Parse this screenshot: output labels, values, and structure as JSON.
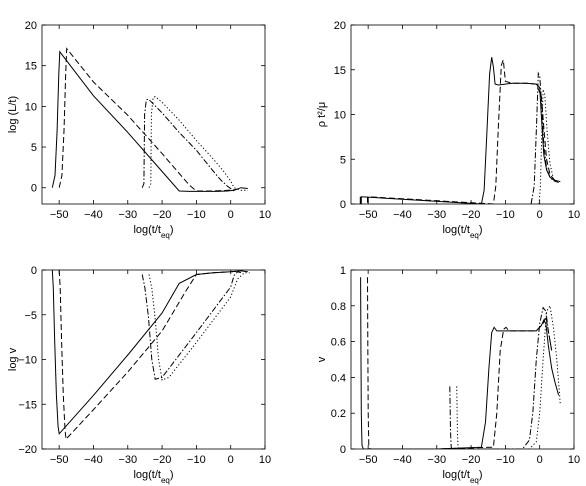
{
  "chart_data": [
    {
      "type": "line",
      "xlabel": "log(t/t_eq)",
      "ylabel": "log (L/t)",
      "xlim": [
        -55,
        10
      ],
      "ylim": [
        -2,
        20
      ],
      "xticks": [
        -50,
        -40,
        -30,
        -20,
        -10,
        0,
        10
      ],
      "yticks": [
        0,
        5,
        10,
        15,
        20
      ],
      "series": [
        {
          "style": "solid",
          "x": [
            -52,
            -51.2,
            -50.6,
            -50.1,
            -49.8,
            -40,
            -30,
            -20,
            -15,
            -12,
            -8,
            -4,
            -1,
            1,
            3,
            5
          ],
          "y": [
            0,
            1.5,
            7,
            14,
            16.7,
            11.3,
            6.8,
            2,
            -0.4,
            -0.45,
            -0.45,
            -0.45,
            -0.4,
            -0.3,
            0,
            -0.1
          ]
        },
        {
          "style": "dashed",
          "x": [
            -50,
            -49.2,
            -48.6,
            -48.1,
            -47.8,
            -40,
            -30,
            -20,
            -12,
            -10,
            -6,
            -2,
            1,
            3
          ],
          "y": [
            0,
            1.5,
            7,
            14,
            17.1,
            13,
            8.9,
            4.2,
            0.3,
            -0.4,
            -0.4,
            -0.35,
            -0.25,
            -0.1
          ]
        },
        {
          "style": "dashdot",
          "x": [
            -25.8,
            -25.3,
            -25.1,
            -24.6,
            -24,
            -20,
            -15,
            -10,
            -5,
            -3,
            -1,
            1
          ],
          "y": [
            0,
            0.5,
            9,
            10.8,
            10.9,
            9.2,
            6.8,
            4.6,
            2,
            1,
            0.2,
            -0.4
          ]
        },
        {
          "style": "dotted",
          "x": [
            -23.8,
            -23.3,
            -23.1,
            -22.6,
            -22,
            -20,
            -15,
            -10,
            -5,
            -2,
            0,
            1,
            3,
            5
          ],
          "y": [
            0,
            0.5,
            9,
            11.1,
            11.2,
            10.5,
            8.3,
            5.8,
            3.5,
            2,
            0.8,
            0,
            -0.3,
            -0.3
          ]
        }
      ]
    },
    {
      "type": "line",
      "xlabel": "log(t/t_eq)",
      "ylabel": "ρ t²/μ",
      "xlim": [
        -55,
        10
      ],
      "ylim": [
        0,
        20
      ],
      "xticks": [
        -50,
        -40,
        -30,
        -20,
        -10,
        0,
        10
      ],
      "yticks": [
        0,
        5,
        10,
        15,
        20
      ],
      "series": [
        {
          "style": "solid",
          "x": [
            -52.3,
            -52.3,
            -52,
            -52,
            -17,
            -16.2,
            -15.4,
            -14.6,
            -14,
            -13.5,
            -13,
            -12,
            -8,
            -4,
            -1,
            0,
            0.6,
            1.2,
            2,
            3,
            4,
            5,
            6
          ],
          "y": [
            0.8,
            0,
            0,
            0.8,
            0,
            1.5,
            8,
            14.5,
            16.4,
            15.3,
            13.4,
            13.3,
            13.5,
            13.5,
            13.4,
            13,
            9,
            5.5,
            3.8,
            3,
            2.7,
            2.6,
            2.5
          ]
        },
        {
          "style": "dashed",
          "x": [
            -50.2,
            -50.2,
            -50,
            -50,
            -13.5,
            -12.8,
            -12,
            -11.2,
            -10.6,
            -10,
            -8,
            -4,
            -1,
            0.5,
            1.3,
            2,
            3,
            4.5
          ],
          "y": [
            0.8,
            0,
            0,
            0.8,
            0,
            2,
            9,
            15.5,
            16.1,
            13.7,
            13.5,
            13.5,
            13.4,
            12,
            8,
            5,
            3.3,
            2.6
          ]
        },
        {
          "style": "dashdot",
          "x": [
            -2.5,
            -1.6,
            -0.9,
            -0.4,
            0,
            0.6,
            1.2,
            2,
            3,
            4,
            5.5
          ],
          "y": [
            0,
            2,
            9,
            14.6,
            14.3,
            11,
            6.5,
            4,
            3,
            2.6,
            2.4
          ]
        },
        {
          "style": "dotted",
          "x": [
            -0.2,
            0.2,
            0.6,
            1,
            1.5,
            2.2,
            3,
            4,
            5
          ],
          "y": [
            0,
            2,
            8,
            12.8,
            12.2,
            8,
            4.5,
            2.8,
            2.5
          ]
        }
      ]
    },
    {
      "type": "line",
      "xlabel": "log(t/t_eq)",
      "ylabel": "log v",
      "xlim": [
        -55,
        10
      ],
      "ylim": [
        -20,
        0
      ],
      "xticks": [
        -50,
        -40,
        -30,
        -20,
        -10,
        0,
        10
      ],
      "yticks": [
        -20,
        -15,
        -10,
        -5,
        0
      ],
      "series": [
        {
          "style": "solid",
          "x": [
            -52,
            -51.7,
            -51.3,
            -50.8,
            -50.3,
            -50,
            -40,
            -30,
            -20,
            -15,
            -10,
            -5,
            0,
            3,
            5
          ],
          "y": [
            0,
            -2,
            -8,
            -14,
            -17.5,
            -18.3,
            -14,
            -9.5,
            -4.8,
            -1.5,
            -0.5,
            -0.3,
            -0.2,
            -0.1,
            -0.2
          ]
        },
        {
          "style": "dashed",
          "x": [
            -50,
            -49.7,
            -49.3,
            -48.8,
            -48.3,
            -48,
            -40,
            -30,
            -20,
            -13,
            -10,
            -5,
            0,
            3
          ],
          "y": [
            0,
            -2,
            -8,
            -14,
            -17.8,
            -18.9,
            -15.6,
            -11.4,
            -6.8,
            -2.3,
            -0.5,
            -0.3,
            -0.2,
            -0.1
          ]
        },
        {
          "style": "dashdot",
          "x": [
            -25.8,
            -25,
            -24,
            -23,
            -22,
            -20,
            -10,
            0,
            1,
            2,
            3
          ],
          "y": [
            -0.5,
            -2,
            -5.2,
            -10,
            -12.2,
            -12,
            -7,
            -1.9,
            -0.6,
            -0.2,
            -0.3
          ]
        },
        {
          "style": "dotted",
          "x": [
            -23.8,
            -23,
            -22,
            -21,
            -20,
            -18,
            -10,
            0,
            2,
            4,
            5.5
          ],
          "y": [
            -0.5,
            -2,
            -5.5,
            -10,
            -12.3,
            -12,
            -8.1,
            -3,
            -1,
            -0.3,
            -0.3
          ]
        }
      ]
    },
    {
      "type": "line",
      "xlabel": "log(t/t_eq)",
      "ylabel": "v",
      "xlim": [
        -55,
        10
      ],
      "ylim": [
        0,
        1
      ],
      "xticks": [
        -50,
        -40,
        -30,
        -20,
        -10,
        0,
        10
      ],
      "yticks": [
        0,
        0.2,
        0.4,
        0.6,
        0.8,
        1
      ],
      "series": [
        {
          "style": "solid",
          "x": [
            -52.2,
            -52.1,
            -52,
            -51.8,
            -51.4,
            -30,
            -17,
            -15.8,
            -14.8,
            -14,
            -13.3,
            -12.5,
            -10,
            -5,
            -1,
            0.5,
            1.2,
            1.8,
            2.5,
            3.5,
            4.5,
            5.5
          ],
          "y": [
            0.96,
            0.6,
            0.2,
            0.02,
            0,
            0,
            0.01,
            0.15,
            0.45,
            0.65,
            0.68,
            0.66,
            0.66,
            0.66,
            0.66,
            0.69,
            0.72,
            0.7,
            0.58,
            0.45,
            0.37,
            0.3
          ]
        },
        {
          "style": "dashed",
          "x": [
            -50.2,
            -50.1,
            -50,
            -49.8,
            -49.4,
            -30,
            -13.5,
            -12.5,
            -11.5,
            -10.5,
            -9.8,
            -9,
            -5,
            -1,
            1,
            1.8,
            2.5,
            3.5
          ],
          "y": [
            0.96,
            0.6,
            0.2,
            0.02,
            0,
            0,
            0.01,
            0.2,
            0.55,
            0.67,
            0.68,
            0.66,
            0.66,
            0.66,
            0.7,
            0.74,
            0.66,
            0.55
          ]
        },
        {
          "style": "dashdot",
          "x": [
            -26.2,
            -26.1,
            -26,
            -25.8,
            -25.5,
            -5,
            -3,
            -2,
            -1,
            0,
            1,
            1.8,
            2.5,
            3.5
          ],
          "y": [
            0.35,
            0.25,
            0.1,
            0.01,
            0,
            0,
            0.05,
            0.2,
            0.5,
            0.7,
            0.79,
            0.77,
            0.66,
            0.55
          ]
        },
        {
          "style": "dotted",
          "x": [
            -24.2,
            -24.1,
            -24,
            -23.8,
            -23.5,
            -3,
            -1,
            0,
            1,
            2,
            3,
            4,
            5,
            6
          ],
          "y": [
            0.35,
            0.25,
            0.1,
            0.01,
            0,
            0,
            0.04,
            0.2,
            0.5,
            0.77,
            0.8,
            0.68,
            0.5,
            0.25
          ]
        }
      ]
    }
  ]
}
